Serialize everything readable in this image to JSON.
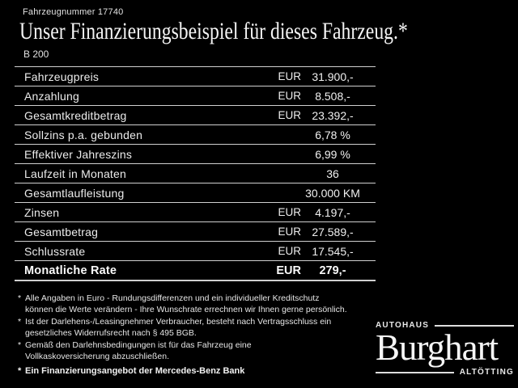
{
  "colors": {
    "background": "#000000",
    "text": "#ededed",
    "line": "#cfcfcf"
  },
  "header": {
    "vehicle_number": "Fahrzeugnummer 17740",
    "title": "Unser Finanzierungsbeispiel für dieses Fahrzeug.*",
    "model": "B 200"
  },
  "finance_table": {
    "rows": [
      {
        "label": "Fahrzeugpreis",
        "currency": "EUR",
        "value": "31.900,-",
        "bold": false
      },
      {
        "label": "Anzahlung",
        "currency": "EUR",
        "value": "8.508,-",
        "bold": false
      },
      {
        "label": "Gesamtkreditbetrag",
        "currency": "EUR",
        "value": "23.392,-",
        "bold": false
      },
      {
        "label": "Sollzins p.a. gebunden",
        "currency": "",
        "value": "6,78 %",
        "bold": false
      },
      {
        "label": "Effektiver Jahreszins",
        "currency": "",
        "value": "6,99 %",
        "bold": false
      },
      {
        "label": "Laufzeit in Monaten",
        "currency": "",
        "value": "36",
        "bold": false
      },
      {
        "label": "Gesamtlaufleistung",
        "currency": "",
        "value": "30.000 KM",
        "bold": false
      },
      {
        "label": "Zinsen",
        "currency": "EUR",
        "value": "4.197,-",
        "bold": false
      },
      {
        "label": "Gesamtbetrag",
        "currency": "EUR",
        "value": "27.589,-",
        "bold": false
      },
      {
        "label": "Schlussrate",
        "currency": "EUR",
        "value": "17.545,-",
        "bold": false
      },
      {
        "label": "Monatliche Rate",
        "currency": "EUR",
        "value": "279,-",
        "bold": true
      }
    ]
  },
  "footnotes": [
    {
      "marker": "*",
      "lines": [
        "Alle Angaben in Euro - Rundungsdifferenzen und ein individueller Kreditschutz",
        "können die Werte verändern - Ihre Wunschrate errechnen wir Ihnen gerne persönlich."
      ]
    },
    {
      "marker": "*",
      "lines": [
        "Ist der Darlehens-/Leasingnehmer Verbraucher, besteht nach Vertragsschluss ein",
        "gesetzliches Widerrufsrecht nach § 495 BGB."
      ]
    },
    {
      "marker": "*",
      "lines": [
        "Gemäß den Darlehnsbedingungen ist für das Fahrzeug eine",
        "Vollkaskoversicherung abzuschließen."
      ]
    }
  ],
  "bank_note": {
    "marker": "*",
    "text": "Ein Finanzierungsangebot der Mercedes-Benz Bank"
  },
  "dealer_logo": {
    "top": "Autohaus",
    "name": "Burghart",
    "bottom": "Altötting"
  }
}
